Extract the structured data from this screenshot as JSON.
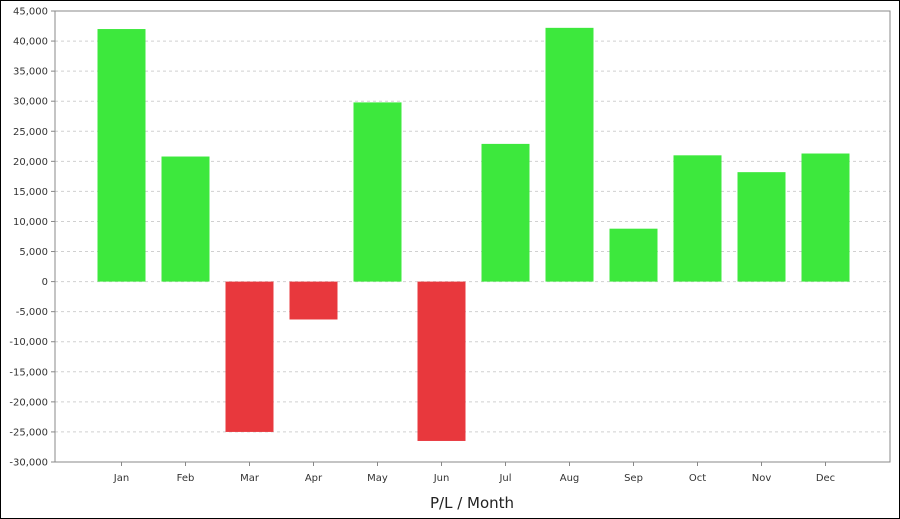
{
  "chart_data": {
    "type": "bar",
    "title": "",
    "xlabel": "P/L / Month",
    "ylabel": "",
    "categories": [
      "Jan",
      "Feb",
      "Mar",
      "Apr",
      "May",
      "Jun",
      "Jul",
      "Aug",
      "Sep",
      "Oct",
      "Nov",
      "Dec"
    ],
    "values": [
      42000,
      20800,
      -25000,
      -6300,
      29800,
      -26500,
      22900,
      42200,
      8800,
      21000,
      18200,
      21300
    ],
    "ylim": [
      -30000,
      45000
    ],
    "yticks": [
      -30000,
      -25000,
      -20000,
      -15000,
      -10000,
      -5000,
      0,
      5000,
      10000,
      15000,
      20000,
      25000,
      30000,
      35000,
      40000,
      45000
    ],
    "ytick_labels": [
      "-30,000",
      "-25,000",
      "-20,000",
      "-15,000",
      "-10,000",
      "-5,000",
      "0",
      "5,000",
      "10,000",
      "15,000",
      "20,000",
      "25,000",
      "30,000",
      "35,000",
      "40,000",
      "45,000"
    ],
    "grid": true,
    "legend": "none",
    "colors": {
      "positive": "#3de83d",
      "negative": "#e8383d",
      "grid": "#d0d0d0",
      "axis": "#888888"
    }
  }
}
